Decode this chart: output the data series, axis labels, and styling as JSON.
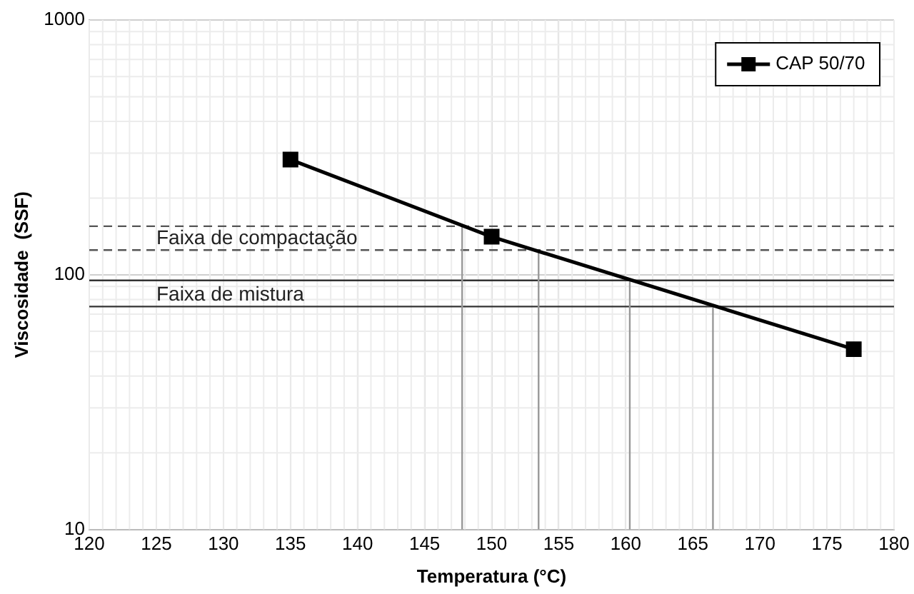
{
  "chart_data": {
    "type": "line",
    "xlabel": "Temperatura (°C)",
    "ylabel": "Viscosidade  (SSF)",
    "x": [
      135,
      150,
      177
    ],
    "series": [
      {
        "name": "CAP 50/70",
        "color": "#000000",
        "values": [
          283,
          141,
          51
        ]
      }
    ],
    "xlim": [
      120,
      180
    ],
    "xticks": [
      120,
      125,
      130,
      135,
      140,
      145,
      150,
      155,
      160,
      165,
      170,
      175,
      180
    ],
    "ylim": [
      10,
      1000
    ],
    "yticks": [
      10,
      100,
      1000
    ],
    "log": "y",
    "grid": true,
    "legend": "top right",
    "marker": "square",
    "line_style": "solid",
    "ref_lines": [
      {
        "axis": "y",
        "value": 155,
        "line_style": "dashed",
        "color": "#555555"
      },
      {
        "axis": "y",
        "value": 125,
        "line_style": "dashed",
        "color": "#555555",
        "label": "Faixa de compactação"
      },
      {
        "axis": "y",
        "value": 95,
        "line_style": "solid",
        "color": "#333333"
      },
      {
        "axis": "y",
        "value": 75,
        "line_style": "solid",
        "color": "#333333",
        "label": "Faixa de mistura"
      },
      {
        "axis": "x",
        "value": 147.8,
        "line_style": "solid",
        "color": "#999999"
      },
      {
        "axis": "x",
        "value": 153.5,
        "line_style": "solid",
        "color": "#999999"
      },
      {
        "axis": "x",
        "value": 160.3,
        "line_style": "solid",
        "color": "#999999"
      },
      {
        "axis": "x",
        "value": 166.5,
        "line_style": "solid",
        "color": "#999999"
      }
    ]
  }
}
